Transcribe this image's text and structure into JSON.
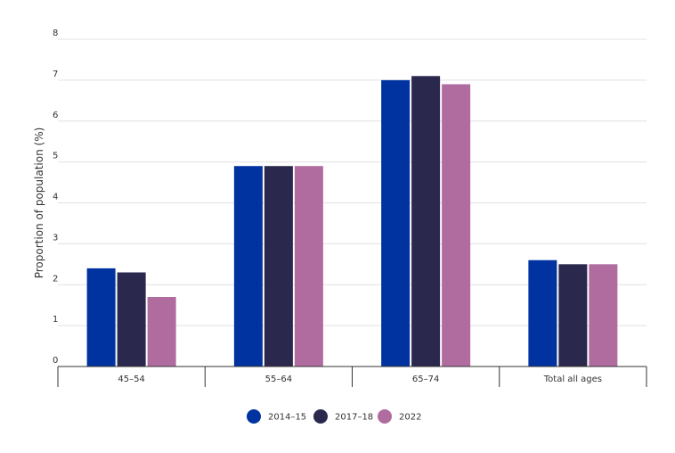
{
  "chart_data": {
    "type": "bar",
    "title": "",
    "xlabel": "",
    "ylabel": "Proportion of population (%)",
    "ylim": [
      0,
      8
    ],
    "yticks": [
      0,
      1,
      2,
      3,
      4,
      5,
      6,
      7,
      8
    ],
    "grid": true,
    "legend_position": "bottom-center",
    "categories": [
      "45–54",
      "55–64",
      "65–74",
      "Total all ages"
    ],
    "series": [
      {
        "name": "2014–15",
        "color": "#0033a0",
        "values": [
          2.4,
          4.9,
          7.0,
          2.6
        ]
      },
      {
        "name": "2017–18",
        "color": "#2b284d",
        "values": [
          2.3,
          4.9,
          7.1,
          2.5
        ]
      },
      {
        "name": "2022",
        "color": "#b06c9f",
        "values": [
          1.7,
          4.9,
          6.9,
          2.5
        ]
      }
    ]
  }
}
